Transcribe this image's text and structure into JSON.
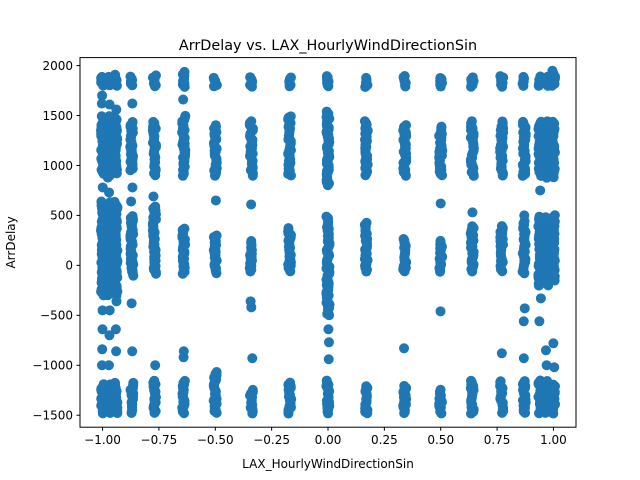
{
  "chart_data": {
    "type": "scatter",
    "title": "ArrDelay vs. LAX_HourlyWindDirectionSin",
    "xlabel": "LAX_HourlyWindDirectionSin",
    "ylabel": "ArrDelay",
    "xlim": [
      -1.1,
      1.1
    ],
    "ylim": [
      -1620,
      2080
    ],
    "xticks": [
      -1.0,
      -0.75,
      -0.5,
      -0.25,
      0.0,
      0.25,
      0.5,
      0.75,
      1.0
    ],
    "xtick_labels": [
      "−1.00",
      "−0.75",
      "−0.50",
      "−0.25",
      "0.00",
      "0.25",
      "0.50",
      "0.75",
      "1.00"
    ],
    "yticks": [
      -1500,
      -1000,
      -500,
      0,
      500,
      1000,
      1500,
      2000
    ],
    "ytick_labels": [
      "−1500",
      "−1000",
      "−500",
      "0",
      "500",
      "1000",
      "1500",
      "2000"
    ],
    "marker_color": "#1f77b4",
    "grid": false,
    "x_columns": [
      {
        "x": -1.0,
        "clusters": [
          [
            -1480,
            -1180
          ],
          [
            -280,
            650
          ],
          [
            920,
            1500
          ],
          [
            1800,
            1900
          ]
        ],
        "outliers": [
          -1000,
          -840,
          -640,
          -450,
          -300,
          -180,
          780,
          1620,
          1700
        ]
      },
      {
        "x": -0.97,
        "clusters": [
          [
            -1480,
            -1180
          ],
          [
            -300,
            650
          ],
          [
            880,
            1500
          ],
          [
            1800,
            1900
          ]
        ],
        "outliers": [
          -1000,
          -700,
          -450,
          730,
          1610
        ]
      },
      {
        "x": -0.94,
        "clusters": [
          [
            -1480,
            -1170
          ],
          [
            -300,
            650
          ],
          [
            920,
            1480
          ],
          [
            1800,
            1920
          ]
        ],
        "outliers": [
          -860,
          -640,
          -360,
          1560
        ]
      },
      {
        "x": -0.87,
        "clusters": [
          [
            -1480,
            -1170
          ],
          [
            -100,
            500
          ],
          [
            950,
            1450
          ],
          [
            1800,
            1900
          ]
        ],
        "outliers": [
          -860,
          -380,
          640,
          780,
          1620
        ]
      },
      {
        "x": -0.77,
        "clusters": [
          [
            -1480,
            -1150
          ],
          [
            -80,
            600
          ],
          [
            900,
            1450
          ],
          [
            1790,
            1900
          ]
        ],
        "outliers": [
          -1000,
          690
        ]
      },
      {
        "x": -0.64,
        "clusters": [
          [
            -1480,
            -1150
          ],
          [
            -80,
            380
          ],
          [
            900,
            1500
          ],
          [
            1790,
            1940
          ]
        ],
        "outliers": [
          -920,
          -860,
          1660
        ]
      },
      {
        "x": -0.5,
        "clusters": [
          [
            -1480,
            -1050
          ],
          [
            -80,
            300
          ],
          [
            900,
            1420
          ],
          [
            1790,
            1890
          ]
        ],
        "outliers": [
          650
        ]
      },
      {
        "x": -0.34,
        "clusters": [
          [
            -1480,
            -1230
          ],
          [
            -60,
            250
          ],
          [
            900,
            1440
          ],
          [
            1790,
            1890
          ]
        ],
        "outliers": [
          -930,
          -420,
          -360,
          610
        ]
      },
      {
        "x": -0.17,
        "clusters": [
          [
            -1480,
            -1170
          ],
          [
            -60,
            380
          ],
          [
            900,
            1500
          ],
          [
            1790,
            1890
          ]
        ],
        "outliers": []
      },
      {
        "x": 0.0,
        "clusters": [
          [
            -1480,
            -1150
          ],
          [
            -500,
            500
          ],
          [
            800,
            1550
          ],
          [
            1790,
            1900
          ]
        ],
        "outliers": [
          -940,
          -770,
          -640,
          -240
        ]
      },
      {
        "x": 0.17,
        "clusters": [
          [
            -1480,
            -1200
          ],
          [
            -60,
            430
          ],
          [
            900,
            1450
          ],
          [
            1790,
            1890
          ]
        ],
        "outliers": []
      },
      {
        "x": 0.34,
        "clusters": [
          [
            -1480,
            -1200
          ],
          [
            -60,
            270
          ],
          [
            900,
            1420
          ],
          [
            1790,
            1900
          ]
        ],
        "outliers": [
          -830
        ]
      },
      {
        "x": 0.5,
        "clusters": [
          [
            -1480,
            -1230
          ],
          [
            -60,
            250
          ],
          [
            900,
            1400
          ],
          [
            1790,
            1890
          ]
        ],
        "outliers": [
          -460,
          620
        ]
      },
      {
        "x": 0.64,
        "clusters": [
          [
            -1480,
            -1150
          ],
          [
            -60,
            400
          ],
          [
            900,
            1450
          ],
          [
            1790,
            1890
          ]
        ],
        "outliers": [
          530
        ]
      },
      {
        "x": 0.77,
        "clusters": [
          [
            -1480,
            -1150
          ],
          [
            -60,
            400
          ],
          [
            900,
            1450
          ],
          [
            1790,
            1900
          ]
        ],
        "outliers": [
          -880
        ]
      },
      {
        "x": 0.87,
        "clusters": [
          [
            -1480,
            -1150
          ],
          [
            -80,
            450
          ],
          [
            900,
            1450
          ],
          [
            1800,
            1900
          ]
        ],
        "outliers": [
          -930,
          -560,
          -430,
          500
        ]
      },
      {
        "x": 0.94,
        "clusters": [
          [
            -1480,
            -1150
          ],
          [
            -200,
            500
          ],
          [
            900,
            1450
          ],
          [
            1800,
            1900
          ]
        ],
        "outliers": [
          -560,
          -330,
          750
        ]
      },
      {
        "x": 0.97,
        "clusters": [
          [
            -1480,
            -1150
          ],
          [
            -200,
            500
          ],
          [
            880,
            1450
          ],
          [
            1800,
            1900
          ]
        ],
        "outliers": [
          -1000,
          -850,
          -180
        ]
      },
      {
        "x": 1.0,
        "clusters": [
          [
            -1480,
            -1180
          ],
          [
            -150,
            500
          ],
          [
            880,
            1450
          ],
          [
            1800,
            1950
          ]
        ],
        "outliers": [
          -1020,
          -780,
          1200
        ]
      }
    ]
  }
}
